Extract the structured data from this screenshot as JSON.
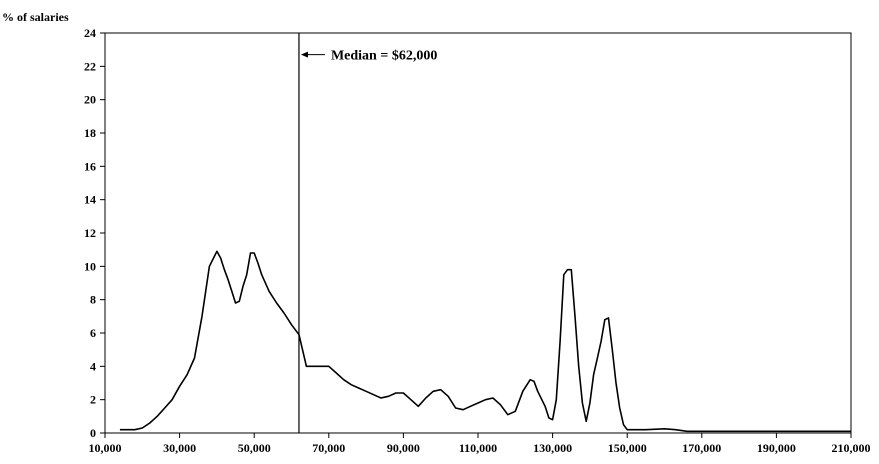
{
  "chart_data": {
    "type": "line",
    "title": "",
    "ylabel": "% of salaries",
    "xlabel": "",
    "xlim": [
      10000,
      210000
    ],
    "ylim": [
      0,
      24
    ],
    "x_ticks": [
      10000,
      30000,
      50000,
      70000,
      90000,
      110000,
      130000,
      150000,
      170000,
      190000,
      210000
    ],
    "x_tick_labels": [
      "10,000",
      "30,000",
      "50,000",
      "70,000",
      "90,000",
      "110,000",
      "130,000",
      "150,000",
      "170,000",
      "190,000",
      "210,000"
    ],
    "y_ticks": [
      0,
      2,
      4,
      6,
      8,
      10,
      12,
      14,
      16,
      18,
      20,
      22,
      24
    ],
    "y_tick_labels": [
      "0",
      "2",
      "4",
      "6",
      "8",
      "10",
      "12",
      "14",
      "16",
      "18",
      "20",
      "22",
      "24"
    ],
    "grid": false,
    "series": [
      {
        "x": [
          14000,
          18000,
          20000,
          22000,
          24000,
          26000,
          28000,
          30000,
          32000,
          34000,
          36000,
          38000,
          40000,
          41000,
          42000,
          43000,
          44000,
          45000,
          46000,
          47000,
          48000,
          49000,
          50000,
          51000,
          52000,
          54000,
          56000,
          58000,
          60000,
          62000,
          64000,
          66000,
          68000,
          70000,
          72000,
          74000,
          76000,
          78000,
          80000,
          82000,
          84000,
          86000,
          88000,
          89000,
          90000,
          92000,
          94000,
          96000,
          98000,
          100000,
          102000,
          104000,
          106000,
          108000,
          110000,
          112000,
          114000,
          116000,
          118000,
          120000,
          122000,
          124000,
          125000,
          126000,
          128000,
          129000,
          130000,
          131000,
          132000,
          133000,
          134000,
          135000,
          136000,
          137000,
          138000,
          139000,
          140000,
          141000,
          142000,
          143000,
          144000,
          145000,
          146000,
          147000,
          148000,
          149000,
          150000,
          152000,
          155000,
          160000,
          163000,
          166000,
          170000,
          180000,
          190000,
          200000,
          210000
        ],
        "y": [
          0.2,
          0.2,
          0.3,
          0.6,
          1.0,
          1.5,
          2.0,
          2.8,
          3.5,
          4.5,
          7.0,
          10.0,
          10.9,
          10.5,
          9.8,
          9.2,
          8.5,
          7.8,
          7.9,
          8.8,
          9.5,
          10.8,
          10.8,
          10.2,
          9.5,
          8.5,
          7.8,
          7.2,
          6.5,
          5.9,
          4.0,
          4.0,
          4.0,
          4.0,
          3.6,
          3.2,
          2.9,
          2.7,
          2.5,
          2.3,
          2.1,
          2.2,
          2.4,
          2.4,
          2.4,
          2.0,
          1.6,
          2.1,
          2.5,
          2.6,
          2.2,
          1.5,
          1.4,
          1.6,
          1.8,
          2.0,
          2.1,
          1.7,
          1.1,
          1.3,
          2.5,
          3.2,
          3.1,
          2.5,
          1.6,
          0.9,
          0.8,
          2.0,
          5.5,
          9.5,
          9.8,
          9.8,
          7.0,
          4.0,
          1.8,
          0.7,
          1.8,
          3.5,
          4.5,
          5.5,
          6.8,
          6.9,
          5.0,
          3.0,
          1.5,
          0.5,
          0.2,
          0.2,
          0.2,
          0.25,
          0.2,
          0.1,
          0.1,
          0.1,
          0.1,
          0.1,
          0.1
        ],
        "color": "#000000"
      }
    ],
    "annotations": [
      {
        "text": "Median = $62,000",
        "x": 62000,
        "type": "vertical-line"
      }
    ]
  }
}
